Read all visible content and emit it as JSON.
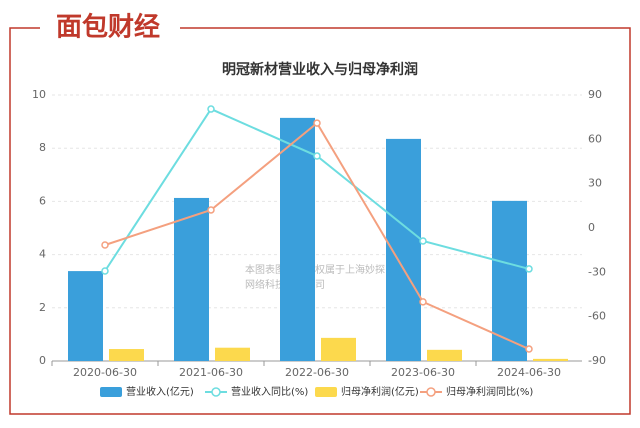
{
  "brand": "面包财经",
  "watermark": {
    "line1": "本图表图片著作权属于上海妙探",
    "line2": "网络科技有限公司"
  },
  "chart_data": {
    "type": "bar",
    "title": "明冠新材营业收入与归母净利润",
    "categories": [
      "2020-06-30",
      "2021-06-30",
      "2022-06-30",
      "2023-06-30",
      "2024-06-30"
    ],
    "series": [
      {
        "name": "营业收入(亿元)",
        "type": "bar",
        "color": "#3a9fdb",
        "values": [
          3.38,
          6.13,
          9.14,
          8.35,
          6.02
        ]
      },
      {
        "name": "营业收入同比(%)",
        "type": "line",
        "axis": "y2",
        "color": "#6ddde0",
        "values": [
          -29.1,
          80.5,
          48.7,
          -8.8,
          -27.7
        ]
      },
      {
        "name": "归母净利润(亿元)",
        "type": "bar",
        "color": "#fcd94d",
        "values": [
          0.45,
          0.5,
          0.87,
          0.42,
          0.08
        ]
      },
      {
        "name": "归母净利润同比(%)",
        "type": "line",
        "axis": "y2",
        "color": "#f4a07f",
        "values": [
          -11.5,
          12.2,
          71,
          -50,
          -81.9
        ]
      }
    ],
    "ylim": [
      0,
      10
    ],
    "yticks": [
      0,
      2,
      4,
      6,
      8,
      10
    ],
    "y2lim": [
      -90,
      90
    ],
    "y2ticks": [
      -90,
      -60,
      -30,
      0,
      30,
      60,
      90
    ],
    "grid": true
  }
}
